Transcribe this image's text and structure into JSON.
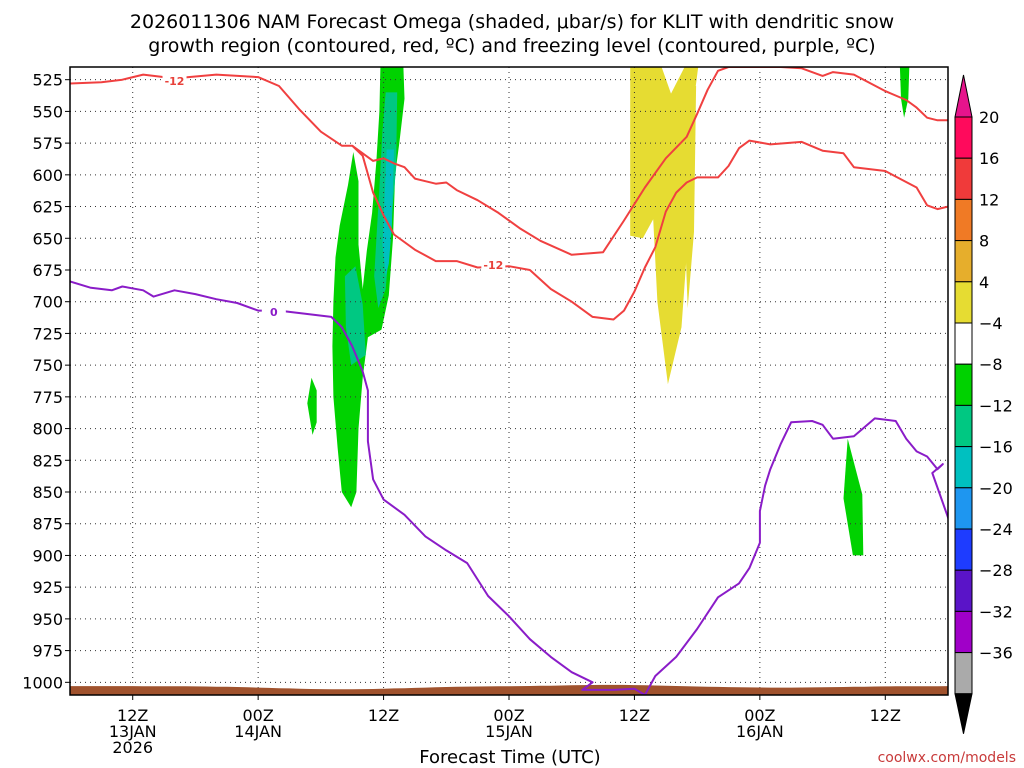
{
  "title_line1": "2026011306 NAM Forecast Omega (shaded, μbar/s) for KLIT with dendritic snow",
  "title_line2": "growth region (contoured, red, ºC) and freezing level (contoured, purple, ºC)",
  "credit": "coolwx.com/models",
  "chart_data": {
    "type": "heatmap",
    "xlabel": "Forecast Time (UTC)",
    "ylabel": "",
    "x_unit": "forecast hour",
    "xlim": [
      0,
      84
    ],
    "y_unit": "hPa",
    "ylim": [
      1010,
      515
    ],
    "y_ticks": [
      525,
      550,
      575,
      600,
      625,
      650,
      675,
      700,
      725,
      750,
      775,
      800,
      825,
      850,
      875,
      900,
      925,
      950,
      975,
      1000
    ],
    "x_ticks": [
      {
        "hour": 6,
        "lines": [
          "12Z",
          "13JAN",
          "2026"
        ]
      },
      {
        "hour": 18,
        "lines": [
          "00Z",
          "14JAN"
        ]
      },
      {
        "hour": 30,
        "lines": [
          "12Z"
        ]
      },
      {
        "hour": 42,
        "lines": [
          "00Z",
          "15JAN"
        ]
      },
      {
        "hour": 54,
        "lines": [
          "12Z"
        ]
      },
      {
        "hour": 66,
        "lines": [
          "00Z",
          "16JAN"
        ]
      },
      {
        "hour": 78,
        "lines": [
          "12Z"
        ]
      }
    ],
    "colorbar": {
      "labels": [
        "20",
        "16",
        "12",
        "8",
        "4",
        "−4",
        "−8",
        "−12",
        "−16",
        "−20",
        "−24",
        "−28",
        "−32",
        "−36"
      ],
      "colors": [
        "#ff0a5c",
        "#f03a3a",
        "#f07a25",
        "#e6ae2c",
        "#e6dc32",
        "#ffffff",
        "#00d200",
        "#00c882",
        "#00c0c0",
        "#1e96f0",
        "#1e3cff",
        "#5a14c8",
        "#a000c8",
        "#aaaaaa"
      ],
      "top_arrow_color": "#e6148c",
      "bottom_arrow_color": "#000000"
    },
    "contours": [
      {
        "name": "dgz-upper",
        "label": "-12",
        "color": "#f04040",
        "label_at": [
          10,
          526
        ],
        "points": [
          [
            0,
            528
          ],
          [
            3,
            527
          ],
          [
            5,
            525
          ],
          [
            7,
            521
          ],
          [
            10,
            524
          ],
          [
            14,
            521
          ],
          [
            18,
            523
          ],
          [
            20,
            530
          ],
          [
            22,
            549
          ],
          [
            24,
            566
          ],
          [
            26,
            577
          ],
          [
            27,
            577
          ],
          [
            29,
            589
          ],
          [
            30,
            587
          ],
          [
            31,
            591
          ],
          [
            32,
            594
          ],
          [
            33,
            603
          ],
          [
            34,
            605
          ],
          [
            35,
            607
          ],
          [
            36,
            606
          ],
          [
            37,
            612
          ],
          [
            39,
            620
          ],
          [
            41,
            630
          ],
          [
            43,
            642
          ],
          [
            45,
            652
          ],
          [
            48,
            663
          ],
          [
            51,
            661
          ],
          [
            53,
            636
          ],
          [
            55,
            610
          ],
          [
            57,
            587
          ],
          [
            59,
            570
          ],
          [
            60,
            552
          ],
          [
            61,
            533
          ],
          [
            62,
            518
          ],
          [
            63,
            515
          ],
          [
            68,
            515
          ],
          [
            70,
            516
          ],
          [
            72,
            522
          ],
          [
            73,
            519
          ],
          [
            75,
            521
          ],
          [
            78,
            534
          ],
          [
            80,
            541
          ],
          [
            81,
            547
          ],
          [
            82,
            555
          ],
          [
            83,
            557
          ],
          [
            84,
            557
          ],
          [
            85,
            553
          ]
        ]
      },
      {
        "name": "dgz-lower",
        "label": "-12",
        "color": "#f04040",
        "label_at": [
          40.5,
          671
        ],
        "points": [
          [
            27,
            577
          ],
          [
            28,
            585
          ],
          [
            29,
            614
          ],
          [
            30,
            632
          ],
          [
            31,
            647
          ],
          [
            33,
            659
          ],
          [
            35,
            668
          ],
          [
            37,
            668
          ],
          [
            39,
            673
          ],
          [
            42,
            672
          ],
          [
            44,
            675
          ],
          [
            46,
            690
          ],
          [
            48,
            700
          ],
          [
            50,
            712
          ],
          [
            52,
            714
          ],
          [
            53,
            707
          ],
          [
            54,
            692
          ],
          [
            55,
            673
          ],
          [
            56,
            657
          ],
          [
            57,
            629
          ],
          [
            58,
            614
          ],
          [
            59,
            606
          ],
          [
            60,
            602
          ],
          [
            62,
            602
          ],
          [
            63,
            593
          ],
          [
            64,
            579
          ],
          [
            65,
            573
          ],
          [
            67,
            576
          ],
          [
            70,
            574
          ],
          [
            72,
            581
          ],
          [
            74,
            583
          ],
          [
            75,
            594
          ],
          [
            78,
            597
          ],
          [
            81,
            610
          ],
          [
            82,
            624
          ],
          [
            83,
            627
          ],
          [
            84,
            625
          ],
          [
            85,
            623
          ]
        ]
      },
      {
        "name": "freezing-level",
        "label": "0",
        "color": "#8a1cc8",
        "label_at": [
          19.5,
          708
        ],
        "points": [
          [
            0,
            684
          ],
          [
            2,
            689
          ],
          [
            4,
            691
          ],
          [
            5,
            688
          ],
          [
            7,
            691
          ],
          [
            8,
            696
          ],
          [
            10,
            691
          ],
          [
            12,
            694
          ],
          [
            14,
            698
          ],
          [
            16,
            701
          ],
          [
            18,
            707
          ],
          [
            20,
            707
          ],
          [
            22,
            709
          ],
          [
            25,
            712
          ],
          [
            26,
            720
          ],
          [
            27,
            735
          ],
          [
            28,
            755
          ],
          [
            28.5,
            770
          ],
          [
            28.5,
            810
          ],
          [
            29,
            840
          ],
          [
            30,
            856
          ],
          [
            32,
            868
          ],
          [
            34,
            885
          ],
          [
            36,
            896
          ],
          [
            38,
            906
          ],
          [
            40,
            932
          ],
          [
            42,
            948
          ],
          [
            44,
            966
          ],
          [
            46,
            980
          ],
          [
            48,
            992
          ],
          [
            50,
            1000
          ],
          [
            49,
            1006
          ],
          [
            52,
            1006
          ],
          [
            54,
            1005
          ],
          [
            55,
            1010
          ],
          [
            56,
            995
          ],
          [
            58,
            980
          ],
          [
            60,
            958
          ],
          [
            62,
            933
          ],
          [
            64,
            922
          ],
          [
            65,
            910
          ],
          [
            66,
            890
          ],
          [
            66,
            865
          ],
          [
            66.5,
            845
          ],
          [
            67,
            832
          ],
          [
            68,
            812
          ],
          [
            69,
            795
          ],
          [
            71,
            794
          ],
          [
            72,
            797
          ],
          [
            73,
            808
          ],
          [
            75,
            806
          ],
          [
            77,
            792
          ],
          [
            79,
            794
          ],
          [
            80,
            808
          ],
          [
            81,
            818
          ],
          [
            82,
            822
          ],
          [
            83,
            832
          ],
          [
            83.5,
            828
          ],
          [
            82.5,
            835
          ],
          [
            84,
            870
          ],
          [
            84.5,
            882
          ],
          [
            85,
            885
          ]
        ]
      }
    ],
    "shaded_regions": [
      {
        "name": "omega-yellow-a",
        "color": "#e6dc32",
        "points": [
          [
            53.6,
            515
          ],
          [
            56.6,
            515
          ],
          [
            57.5,
            536
          ],
          [
            58.8,
            515
          ],
          [
            60.1,
            515
          ],
          [
            59.4,
            560
          ],
          [
            59.2,
            640
          ],
          [
            58.5,
            720
          ],
          [
            57.2,
            765
          ],
          [
            56.2,
            700
          ],
          [
            55.8,
            635
          ],
          [
            54.8,
            650
          ],
          [
            53.6,
            648
          ]
        ]
      },
      {
        "name": "omega-yellow-b",
        "color": "#e6dc32",
        "points": [
          [
            58.8,
            530
          ],
          [
            59.9,
            530
          ],
          [
            59.7,
            645
          ],
          [
            59.1,
            705
          ],
          [
            58.9,
            660
          ]
        ]
      },
      {
        "name": "omega-green-main",
        "color": "#00d200",
        "points": [
          [
            29.7,
            515
          ],
          [
            31.9,
            515
          ],
          [
            32.0,
            540
          ],
          [
            31.5,
            575
          ],
          [
            31.1,
            600
          ],
          [
            30.9,
            650
          ],
          [
            30.5,
            695
          ],
          [
            29.8,
            722
          ],
          [
            28.5,
            728
          ],
          [
            28.0,
            760
          ],
          [
            27.6,
            800
          ],
          [
            27.4,
            850
          ],
          [
            26.9,
            862
          ],
          [
            26.0,
            850
          ],
          [
            25.6,
            815
          ],
          [
            25.2,
            775
          ],
          [
            25.1,
            735
          ],
          [
            25.2,
            700
          ],
          [
            25.4,
            665
          ],
          [
            25.8,
            640
          ],
          [
            26.6,
            608
          ],
          [
            27.1,
            582
          ],
          [
            27.6,
            605
          ],
          [
            27.6,
            655
          ],
          [
            28.0,
            690
          ],
          [
            28.4,
            660
          ],
          [
            28.9,
            630
          ],
          [
            29.3,
            590
          ],
          [
            29.6,
            550
          ]
        ]
      },
      {
        "name": "omega-teal-upper",
        "color": "#00c882",
        "points": [
          [
            30.2,
            535
          ],
          [
            31.3,
            535
          ],
          [
            31.2,
            595
          ],
          [
            30.7,
            640
          ],
          [
            30.2,
            690
          ],
          [
            29.5,
            705
          ],
          [
            29.1,
            680
          ],
          [
            29.6,
            610
          ],
          [
            29.9,
            565
          ]
        ]
      },
      {
        "name": "omega-cyan-core",
        "color": "#00c0c0",
        "points": [
          [
            30.3,
            580
          ],
          [
            31.0,
            580
          ],
          [
            30.8,
            640
          ],
          [
            30.5,
            670
          ],
          [
            30.2,
            680
          ],
          [
            29.9,
            655
          ]
        ]
      },
      {
        "name": "omega-teal-lower",
        "color": "#00c882",
        "points": [
          [
            26.3,
            680
          ],
          [
            27.3,
            672
          ],
          [
            28.0,
            702
          ],
          [
            28.3,
            742
          ],
          [
            26.9,
            750
          ],
          [
            26.4,
            720
          ]
        ]
      },
      {
        "name": "omega-green-small",
        "color": "#00d200",
        "points": [
          [
            23.1,
            760
          ],
          [
            23.6,
            770
          ],
          [
            23.6,
            795
          ],
          [
            23.2,
            805
          ],
          [
            22.7,
            780
          ]
        ]
      },
      {
        "name": "omega-green-right",
        "color": "#00d200",
        "points": [
          [
            74.4,
            808
          ],
          [
            75.8,
            852
          ],
          [
            75.9,
            900
          ],
          [
            74.9,
            900
          ],
          [
            74.0,
            855
          ]
        ]
      },
      {
        "name": "omega-green-top-right",
        "color": "#00d200",
        "points": [
          [
            79.4,
            515
          ],
          [
            80.3,
            515
          ],
          [
            80.2,
            540
          ],
          [
            79.8,
            555
          ],
          [
            79.5,
            540
          ]
        ]
      }
    ]
  }
}
